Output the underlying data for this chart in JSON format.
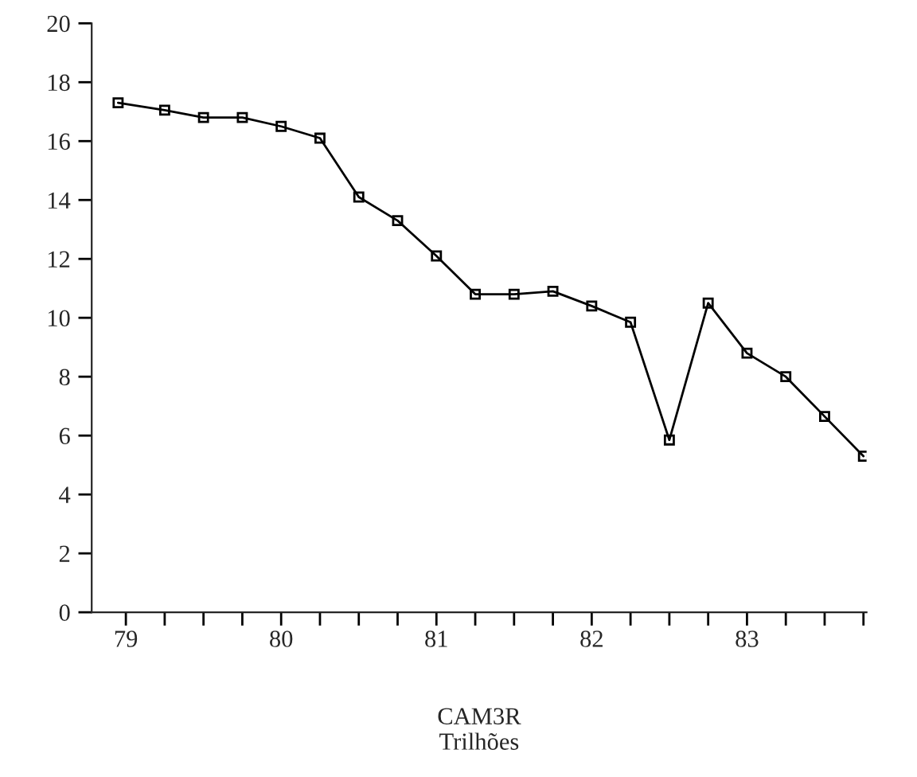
{
  "chart_data": {
    "type": "line",
    "xlabel": "CAM3R\nTrilhões",
    "x": [
      78.95,
      79.25,
      79.5,
      79.75,
      80,
      80.25,
      80.5,
      80.75,
      81,
      81.25,
      81.5,
      81.75,
      82,
      82.25,
      82.5,
      82.75,
      83,
      83.25,
      83.5,
      83.75
    ],
    "series": [
      {
        "color": "#000000",
        "values": [
          17.3,
          17.05,
          16.8,
          16.8,
          16.5,
          16.1,
          14.1,
          13.3,
          12.1,
          10.8,
          10.8,
          10.9,
          10.4,
          9.85,
          5.85,
          10.5,
          8.8,
          8.0,
          6.65,
          5.3
        ]
      }
    ],
    "xlim": [
      78.78,
      83.77
    ],
    "xticks": [
      79,
      {
        "value": 79.25,
        "label": null
      },
      {
        "value": 79.5,
        "label": null
      },
      {
        "value": 79.75,
        "label": null
      },
      80,
      {
        "value": 80.25,
        "label": null
      },
      {
        "value": 80.5,
        "label": null
      },
      {
        "value": 80.75,
        "label": null
      },
      81,
      {
        "value": 81.25,
        "label": null
      },
      {
        "value": 81.5,
        "label": null
      },
      {
        "value": 81.75,
        "label": null
      },
      82,
      {
        "value": 82.25,
        "label": null
      },
      {
        "value": 82.5,
        "label": null
      },
      {
        "value": 82.75,
        "label": null
      },
      83,
      {
        "value": 83.25,
        "label": null
      },
      {
        "value": 83.5,
        "label": null
      },
      {
        "value": 83.75,
        "label": null
      }
    ],
    "ylim": [
      0,
      20
    ],
    "yticks": [
      0,
      2,
      4,
      6,
      8,
      10,
      12,
      14,
      16,
      18,
      20
    ],
    "marker": "square",
    "line_style": "solid",
    "grid": false
  }
}
